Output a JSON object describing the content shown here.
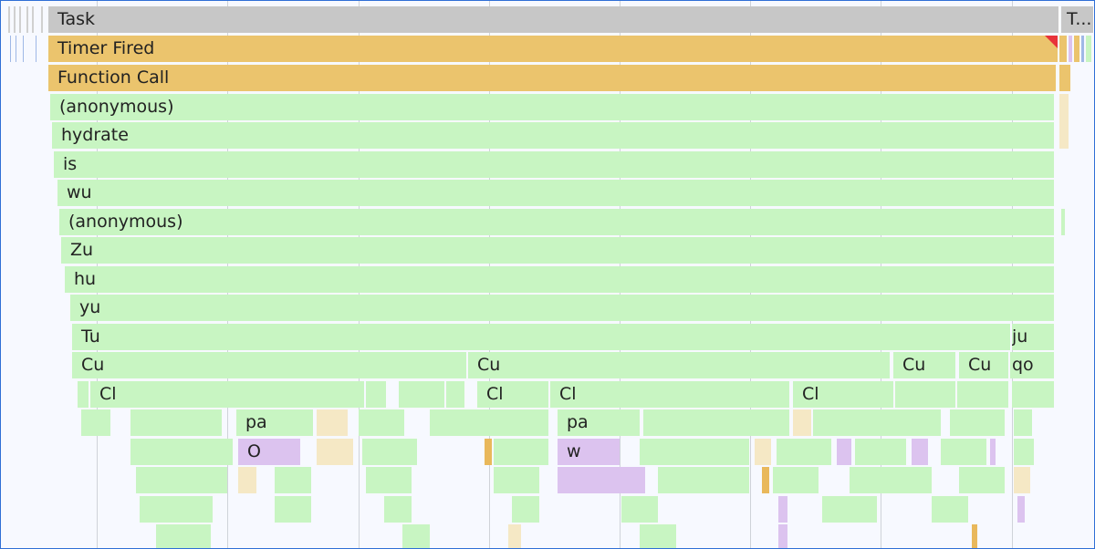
{
  "flame": {
    "task": "Task",
    "task_truncated": "T...",
    "timer_fired": "Timer Fired",
    "function_call": "Function Call",
    "stack": [
      "(anonymous)",
      "hydrate",
      "is",
      "wu",
      "(anonymous)",
      "Zu",
      "hu",
      "yu",
      "Tu"
    ],
    "ju": "ju",
    "cu": "Cu",
    "qo": "qo",
    "cl": "Cl",
    "pa": "pa",
    "o": "O",
    "w": "w"
  },
  "colors": {
    "task": "#c7c7c7",
    "scripting": "#ebc46d",
    "js_call": "#c8f5c2",
    "rendering": "#dcc3ef",
    "paint": "#f5e8c5",
    "selection_border": "#2f6fd6",
    "long_task_marker": "#e8333a"
  }
}
